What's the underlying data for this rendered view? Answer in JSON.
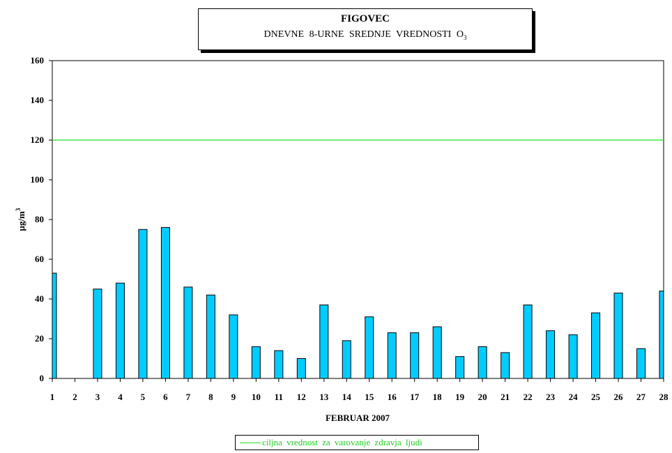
{
  "title": {
    "main": "FIGOVEC",
    "sub_text": "DNEVNE 8-URNE SREDNJE VREDNOSTI O",
    "sub_subscript": "3"
  },
  "legend": {
    "label": "ciljna vrednost za varovanje zdravja ljudi",
    "color": "#22dd22"
  },
  "chart_data": {
    "type": "bar",
    "title": "FIGOVEC",
    "subtitle": "DNEVNE 8-URNE SREDNJE VREDNOSTI O3",
    "xlabel": "FEBRUAR 2007",
    "ylabel": "µg/m3",
    "ylim": [
      0,
      160
    ],
    "yticks": [
      0,
      20,
      40,
      60,
      80,
      100,
      120,
      140,
      160
    ],
    "categories": [
      "1",
      "2",
      "3",
      "4",
      "5",
      "6",
      "7",
      "8",
      "9",
      "10",
      "11",
      "12",
      "13",
      "14",
      "15",
      "16",
      "17",
      "18",
      "19",
      "20",
      "21",
      "22",
      "23",
      "24",
      "25",
      "26",
      "27",
      "28"
    ],
    "series": [
      {
        "values": [
          53,
          null,
          45,
          48,
          75,
          76,
          46,
          42,
          32,
          16,
          14,
          10,
          37,
          19,
          31,
          23,
          23,
          26,
          11,
          16,
          13,
          37,
          24,
          22,
          33,
          43,
          15,
          44
        ],
        "color": "#00ccff"
      }
    ],
    "reference_line": {
      "value": 120,
      "name": "ciljna vrednost za varovanje zdravja ljudi",
      "color": "#22dd22"
    },
    "grid": false,
    "legend_position": "bottom"
  }
}
